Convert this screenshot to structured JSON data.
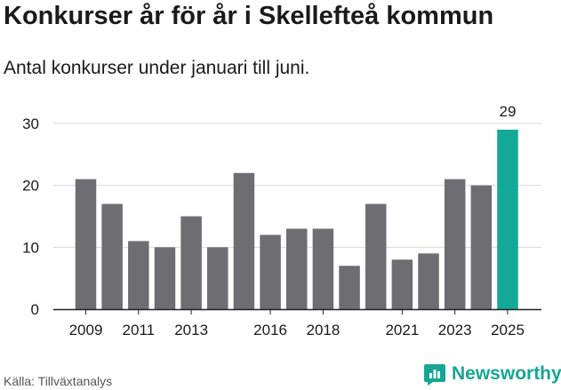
{
  "title": "Konkurser år för år i Skellefteå kommun",
  "subtitle": "Antal konkurser under januari till juni.",
  "source": "Källa: Tillväxtanalys",
  "brand": "Newsworthy",
  "colors": {
    "bar": "#6e6d72",
    "highlight": "#13a898",
    "grid": "#d9d9d9",
    "brand": "#16a595"
  },
  "chart_data": {
    "type": "bar",
    "categories": [
      "2009",
      "2010",
      "2011",
      "2012",
      "2013",
      "2014",
      "2015",
      "2016",
      "2017",
      "2018",
      "2019",
      "2020",
      "2021",
      "2022",
      "2023",
      "2024",
      "2025"
    ],
    "values": [
      21,
      17,
      11,
      10,
      15,
      10,
      22,
      12,
      13,
      13,
      7,
      17,
      8,
      9,
      21,
      20,
      29
    ],
    "x_tick_labels": [
      "2009",
      "2011",
      "2013",
      "2016",
      "2018",
      "2021",
      "2023",
      "2025"
    ],
    "y_ticks": [
      0,
      10,
      20,
      30
    ],
    "ylim": [
      0,
      30
    ],
    "highlight": {
      "category": "2025",
      "label": "29"
    },
    "grid": true,
    "xlabel": "",
    "ylabel": ""
  }
}
